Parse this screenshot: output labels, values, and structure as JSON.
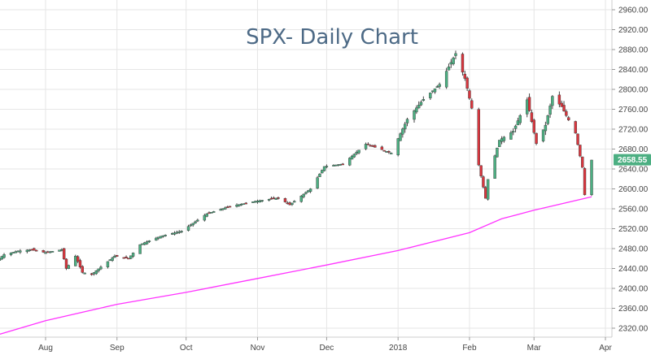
{
  "chart_data": {
    "type": "candlestick",
    "title": "SPX- Daily Chart",
    "xlabel": "",
    "ylabel": "",
    "ylim": [
      2300,
      2980
    ],
    "y_ticks": [
      2320,
      2360,
      2400,
      2440,
      2480,
      2520,
      2560,
      2600,
      2640,
      2680,
      2720,
      2760,
      2800,
      2840,
      2880,
      2920,
      2960
    ],
    "y_tick_labels": [
      "2320.00",
      "2360.00",
      "2400.00",
      "2440.00",
      "2480.00",
      "2520.00",
      "2560.00",
      "2600.00",
      "2640.00",
      "2680.00",
      "2720.00",
      "2760.00",
      "2800.00",
      "2840.00",
      "2880.00",
      "2920.00",
      "2960.00"
    ],
    "x_tick_labels": [
      {
        "label": "Aug",
        "date": "2017-08-01"
      },
      {
        "label": "Sep",
        "date": "2017-09-01"
      },
      {
        "label": "Oct",
        "date": "2017-10-01"
      },
      {
        "label": "Nov",
        "date": "2017-11-01"
      },
      {
        "label": "Dec",
        "date": "2017-12-01"
      },
      {
        "label": "2018",
        "date": "2018-01-01"
      },
      {
        "label": "Feb",
        "date": "2018-02-01"
      },
      {
        "label": "Mar",
        "date": "2018-03-01"
      },
      {
        "label": "Apr",
        "date": "2018-04-01"
      }
    ],
    "last_price": 2658.55,
    "last_price_label": "2658.55",
    "colors": {
      "up": "#4caf82",
      "down": "#d9363e",
      "moving_average": "#ff33ff",
      "grid": "#e6e6e6",
      "price_tag": "#4caf82",
      "title": "#4d6a86"
    },
    "series": [
      {
        "name": "SPX",
        "kind": "candlestick",
        "anchors": [
          [
            "2017-07-10",
            2452
          ],
          [
            "2017-07-14",
            2468
          ],
          [
            "2017-07-20",
            2475
          ],
          [
            "2017-07-26",
            2478
          ],
          [
            "2017-07-28",
            2475
          ],
          [
            "2017-08-01",
            2472
          ],
          [
            "2017-08-08",
            2478
          ],
          [
            "2017-08-10",
            2440
          ],
          [
            "2017-08-14",
            2465
          ],
          [
            "2017-08-17",
            2432
          ],
          [
            "2017-08-21",
            2428
          ],
          [
            "2017-08-25",
            2443
          ],
          [
            "2017-08-31",
            2465
          ],
          [
            "2017-09-06",
            2460
          ],
          [
            "2017-09-11",
            2488
          ],
          [
            "2017-09-20",
            2505
          ],
          [
            "2017-09-29",
            2515
          ],
          [
            "2017-10-10",
            2550
          ],
          [
            "2017-10-20",
            2565
          ],
          [
            "2017-10-31",
            2575
          ],
          [
            "2017-11-10",
            2582
          ],
          [
            "2017-11-15",
            2568
          ],
          [
            "2017-11-24",
            2600
          ],
          [
            "2017-11-30",
            2645
          ],
          [
            "2017-12-08",
            2650
          ],
          [
            "2017-12-18",
            2690
          ],
          [
            "2017-12-29",
            2672
          ],
          [
            "2018-01-05",
            2740
          ],
          [
            "2018-01-12",
            2780
          ],
          [
            "2018-01-19",
            2810
          ],
          [
            "2018-01-26",
            2872
          ],
          [
            "2018-01-30",
            2822
          ],
          [
            "2018-02-02",
            2762
          ],
          [
            "2018-02-05",
            2648
          ],
          [
            "2018-02-08",
            2581
          ],
          [
            "2018-02-09",
            2619
          ],
          [
            "2018-02-14",
            2698
          ],
          [
            "2018-02-20",
            2716
          ],
          [
            "2018-02-26",
            2779
          ],
          [
            "2018-03-02",
            2691
          ],
          [
            "2018-03-06",
            2728
          ],
          [
            "2018-03-09",
            2786
          ],
          [
            "2018-03-13",
            2765
          ],
          [
            "2018-03-19",
            2712
          ],
          [
            "2018-03-22",
            2643
          ],
          [
            "2018-03-23",
            2588
          ],
          [
            "2018-03-26",
            2658
          ]
        ]
      },
      {
        "name": "Moving Average",
        "kind": "line",
        "anchors": [
          [
            "2017-07-10",
            2305
          ],
          [
            "2017-08-01",
            2335
          ],
          [
            "2017-09-01",
            2368
          ],
          [
            "2017-10-01",
            2392
          ],
          [
            "2017-11-01",
            2420
          ],
          [
            "2017-12-01",
            2447
          ],
          [
            "2018-01-01",
            2476
          ],
          [
            "2018-02-01",
            2512
          ],
          [
            "2018-02-15",
            2540
          ],
          [
            "2018-03-01",
            2557
          ],
          [
            "2018-03-26",
            2584
          ]
        ]
      }
    ]
  }
}
